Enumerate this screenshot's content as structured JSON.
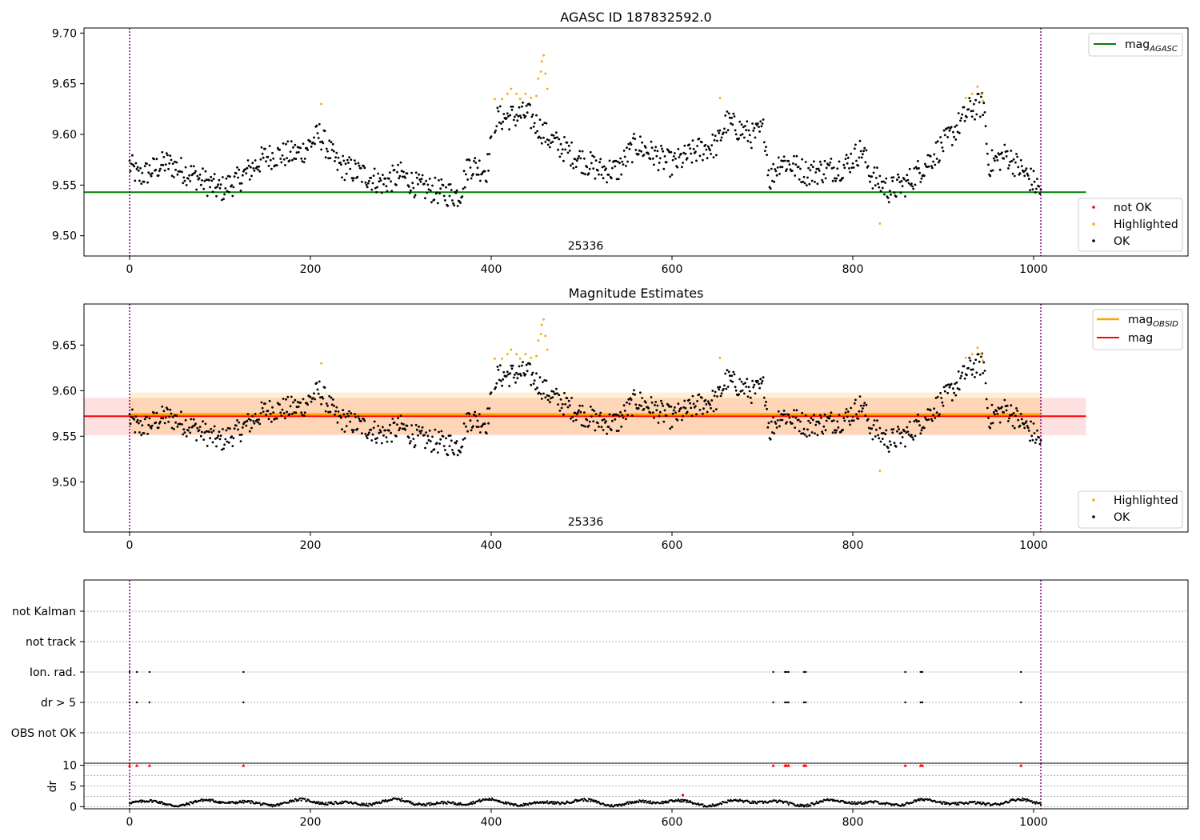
{
  "chart_data": [
    {
      "type": "scatter",
      "title": "AGASC ID 187832592.0",
      "xlabel": "",
      "ylabel": "",
      "xlim": [
        -50,
        1170
      ],
      "ylim": [
        9.48,
        9.705
      ],
      "xticks": [
        "0",
        "200",
        "400",
        "600",
        "800",
        "1000"
      ],
      "yticks": [
        "9.50",
        "9.55",
        "9.60",
        "9.65",
        "9.70"
      ],
      "grid": false,
      "annotation": "25336",
      "vlines": [
        0,
        1008
      ],
      "hline": {
        "name": "mag_AGASC",
        "y": 9.543,
        "x_end": 1058,
        "color": "#008000"
      },
      "legend_lines": [
        {
          "name": "mag",
          "sub": "AGASC",
          "color": "#008000",
          "placement": "upper right"
        }
      ],
      "legend_points": [
        {
          "name": "not OK",
          "color": "#ff0000"
        },
        {
          "name": "Highlighted",
          "color": "#ffa500"
        },
        {
          "name": "OK",
          "color": "#000000"
        }
      ],
      "series": [
        {
          "name": "Highlighted",
          "color": "#ffa500",
          "points": [
            [
              212,
              9.63
            ],
            [
              404,
              9.635
            ],
            [
              412,
              9.635
            ],
            [
              418,
              9.64
            ],
            [
              422,
              9.645
            ],
            [
              428,
              9.64
            ],
            [
              432,
              9.635
            ],
            [
              438,
              9.64
            ],
            [
              444,
              9.636
            ],
            [
              450,
              9.638
            ],
            [
              452,
              9.655
            ],
            [
              455,
              9.662
            ],
            [
              456,
              9.672
            ],
            [
              458,
              9.678
            ],
            [
              460,
              9.66
            ],
            [
              462,
              9.645
            ],
            [
              653,
              9.636
            ],
            [
              830,
              9.512
            ],
            [
              925,
              9.636
            ],
            [
              932,
              9.64
            ],
            [
              938,
              9.647
            ],
            [
              942,
              9.64
            ],
            [
              944,
              9.633
            ]
          ]
        }
      ]
    },
    {
      "type": "scatter",
      "title": "Magnitude Estimates",
      "xlabel": "",
      "ylabel": "",
      "xlim": [
        -50,
        1170
      ],
      "ylim": [
        9.445,
        9.695
      ],
      "xticks": [
        "0",
        "200",
        "400",
        "600",
        "800",
        "1000"
      ],
      "yticks": [
        "9.50",
        "9.55",
        "9.60",
        "9.65"
      ],
      "grid": false,
      "annotation": "25336",
      "vlines": [
        0,
        1008
      ],
      "mag_obsid": {
        "y": 9.574,
        "band": [
          9.552,
          9.598
        ],
        "color": "#ffa500"
      },
      "mag": {
        "y": 9.572,
        "band": [
          9.551,
          9.592
        ],
        "color": "#ff0000"
      },
      "legend_lines": [
        {
          "name": "mag",
          "sub": "OBSID",
          "color": "#ffa500",
          "placement": "upper right"
        },
        {
          "name": "mag",
          "sub": "",
          "color": "#ff0000",
          "placement": "upper right"
        }
      ],
      "legend_points": [
        {
          "name": "Highlighted",
          "color": "#ffa500"
        },
        {
          "name": "OK",
          "color": "#000000"
        }
      ]
    },
    {
      "type": "scatter",
      "title": "",
      "xlim": [
        -50,
        1170
      ],
      "yticks": [
        "not Kalman",
        "not track",
        "Ion. rad.",
        "dr > 5",
        "OBS not OK"
      ],
      "grid": true,
      "vlines": [
        0,
        1008
      ],
      "flag_points": [
        {
          "row": "Ion. rad.",
          "x": [
            0,
            8,
            22,
            126,
            712,
            725,
            727,
            729,
            746,
            748,
            858,
            875,
            877,
            986
          ]
        },
        {
          "row": "dr > 5",
          "x": [
            0,
            8,
            22,
            126,
            712,
            725,
            727,
            729,
            746,
            748,
            858,
            875,
            877,
            986
          ]
        }
      ]
    },
    {
      "type": "line",
      "title": "",
      "xlabel": "",
      "ylabel": "dr",
      "xlim": [
        -50,
        1170
      ],
      "ylim": [
        -0.5,
        10.5
      ],
      "xticks": [
        "0",
        "200",
        "400",
        "600",
        "800",
        "1000"
      ],
      "yticks": [
        "0",
        "5",
        "10"
      ],
      "grid": true,
      "vlines": [
        0,
        1008
      ],
      "outliers": {
        "color": "#ff0000",
        "y": 10,
        "x": [
          0,
          8,
          22,
          126,
          712,
          725,
          727,
          729,
          746,
          748,
          858,
          875,
          877,
          986
        ]
      }
    }
  ],
  "labels": {
    "title1": "AGASC ID 187832592.0",
    "title2": "Magnitude Estimates",
    "annot1": "25336",
    "annot2": "25336",
    "dr": "dr",
    "legend_mag": "mag",
    "legend_sub_agasc": "AGASC",
    "legend_sub_obsid": "OBSID",
    "legend_notok": "not OK",
    "legend_highlighted": "Highlighted",
    "legend_ok": "OK",
    "flag_not_kalman": "not Kalman",
    "flag_not_track": "not track",
    "flag_ion_rad": "Ion. rad.",
    "flag_dr5": "dr > 5",
    "flag_obs_not_ok": "OBS not OK"
  },
  "colors": {
    "ok": "#000000",
    "highlighted": "#ffa500",
    "not_ok": "#ff0000",
    "agasc_line": "#008000",
    "mag_line": "#ff0000",
    "obsid_line": "#ffa500",
    "vline": "#800080"
  }
}
